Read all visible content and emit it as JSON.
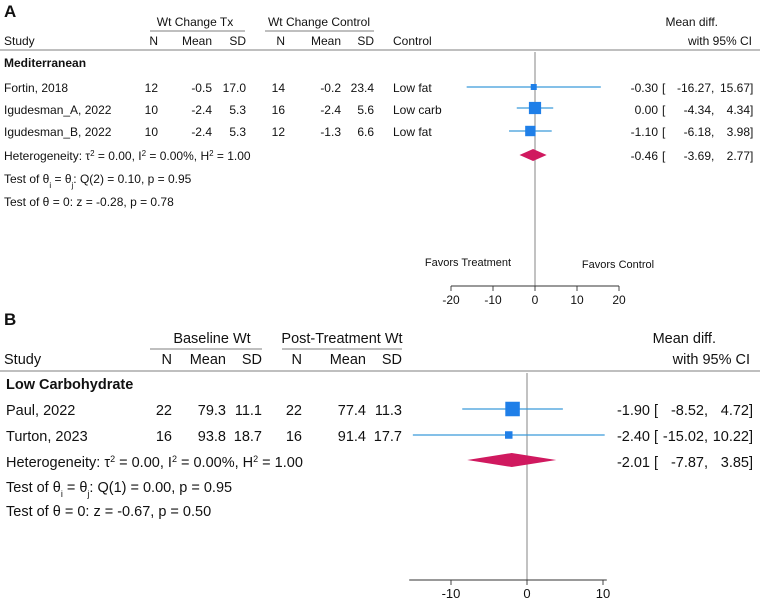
{
  "chart_data": [
    {
      "type": "forest",
      "panel": "A",
      "header": {
        "group1": "Wt Change Tx",
        "group2": "Wt Change Control",
        "study": "Study",
        "n1": "N",
        "mean1": "Mean",
        "sd1": "SD",
        "n2": "N",
        "mean2": "Mean",
        "sd2": "SD",
        "extra": "Control",
        "effect1": "Mean diff.",
        "effect2": "with 95% CI"
      },
      "subgroup": "Mediterranean",
      "studies": [
        {
          "name": "Fortin, 2018",
          "n1": "12",
          "mean1": "-0.5",
          "sd1": "17.0",
          "n2": "14",
          "mean2": "-0.2",
          "sd2": "23.4",
          "extra": "Low fat",
          "est_text": "-0.30",
          "lo_text": "-16.27",
          "hi_text": "15.67",
          "est": -0.3,
          "lo": -16.27,
          "hi": 15.67,
          "weight": 0.15
        },
        {
          "name": "Igudesman_A, 2022",
          "n1": "10",
          "mean1": "-2.4",
          "sd1": "5.3",
          "n2": "16",
          "mean2": "-2.4",
          "sd2": "5.6",
          "extra": "Low carb",
          "est_text": "0.00",
          "lo_text": "-4.34",
          "hi_text": "4.34",
          "est": 0.0,
          "lo": -4.34,
          "hi": 4.34,
          "weight": 0.46
        },
        {
          "name": "Igudesman_B, 2022",
          "n1": "10",
          "mean1": "-2.4",
          "sd1": "5.3",
          "n2": "12",
          "mean2": "-1.3",
          "sd2": "6.6",
          "extra": "Low fat",
          "est_text": "-1.10",
          "lo_text": "-6.18",
          "hi_text": "3.98",
          "est": -1.1,
          "lo": -6.18,
          "hi": 3.98,
          "weight": 0.37
        }
      ],
      "overall": {
        "est_text": "-0.46",
        "lo_text": "-3.69",
        "hi_text": "2.77",
        "est": -0.46,
        "lo": -3.69,
        "hi": 2.77
      },
      "het_prefix": "Heterogeneity: τ",
      "het_mid": " = 0.00, I",
      "het_mid2": " = 0.00%, H",
      "het_end": " = 1.00",
      "test_theta_prefix": "Test of θ",
      "test_theta_mid": " = θ",
      "test_theta_end": ": Q(2) = 0.10, p = 0.95",
      "test_zero": "Test of θ = 0: z = -0.28, p = 0.78",
      "favors_left": "Favors Treatment",
      "favors_right": "Favors Control",
      "xticks": [
        -20,
        -10,
        0,
        10,
        20
      ],
      "xtick_labels": [
        "-20",
        "-10",
        "0",
        "10",
        "20"
      ],
      "xlim": [
        -20,
        20
      ]
    },
    {
      "type": "forest",
      "panel": "B",
      "header": {
        "group1": "Baseline Wt",
        "group2": "Post-Treatment Wt",
        "study": "Study",
        "n1": "N",
        "mean1": "Mean",
        "sd1": "SD",
        "n2": "N",
        "mean2": "Mean",
        "sd2": "SD",
        "effect1": "Mean diff.",
        "effect2": "with 95% CI"
      },
      "subgroup": "Low Carbohydrate",
      "studies": [
        {
          "name": "Paul, 2022",
          "n1": "22",
          "mean1": "79.3",
          "sd1": "11.1",
          "n2": "22",
          "mean2": "77.4",
          "sd2": "11.3",
          "est_text": "-1.90",
          "lo_text": "-8.52",
          "hi_text": "4.72",
          "est": -1.9,
          "lo": -8.52,
          "hi": 4.72,
          "weight": 0.75
        },
        {
          "name": "Turton, 2023",
          "n1": "16",
          "mean1": "93.8",
          "sd1": "18.7",
          "n2": "16",
          "mean2": "91.4",
          "sd2": "17.7",
          "est_text": "-2.40",
          "lo_text": "-15.02",
          "hi_text": "10.22",
          "est": -2.4,
          "lo": -15.02,
          "hi": 10.22,
          "weight": 0.25
        }
      ],
      "overall": {
        "est_text": "-2.01",
        "lo_text": "-7.87",
        "hi_text": "3.85",
        "est": -2.01,
        "lo": -7.87,
        "hi": 3.85
      },
      "het_prefix": "Heterogeneity: τ",
      "het_mid": " = 0.00, I",
      "het_mid2": " = 0.00%, H",
      "het_end": " = 1.00",
      "test_theta_prefix": "Test of θ",
      "test_theta_mid": " = θ",
      "test_theta_end": ": Q(1) = 0.00, p = 0.95",
      "test_zero": "Test of θ = 0: z = -0.67, p = 0.50",
      "xticks": [
        -10,
        0,
        10
      ],
      "xtick_labels": [
        "-10",
        "0",
        "10"
      ],
      "xlim": [
        -15.5,
        10.5
      ]
    }
  ],
  "colors": {
    "ci_line": "#3a9ad9",
    "square": "#1f7fe8",
    "diamond": "#d0195f",
    "axis": "#333333"
  }
}
